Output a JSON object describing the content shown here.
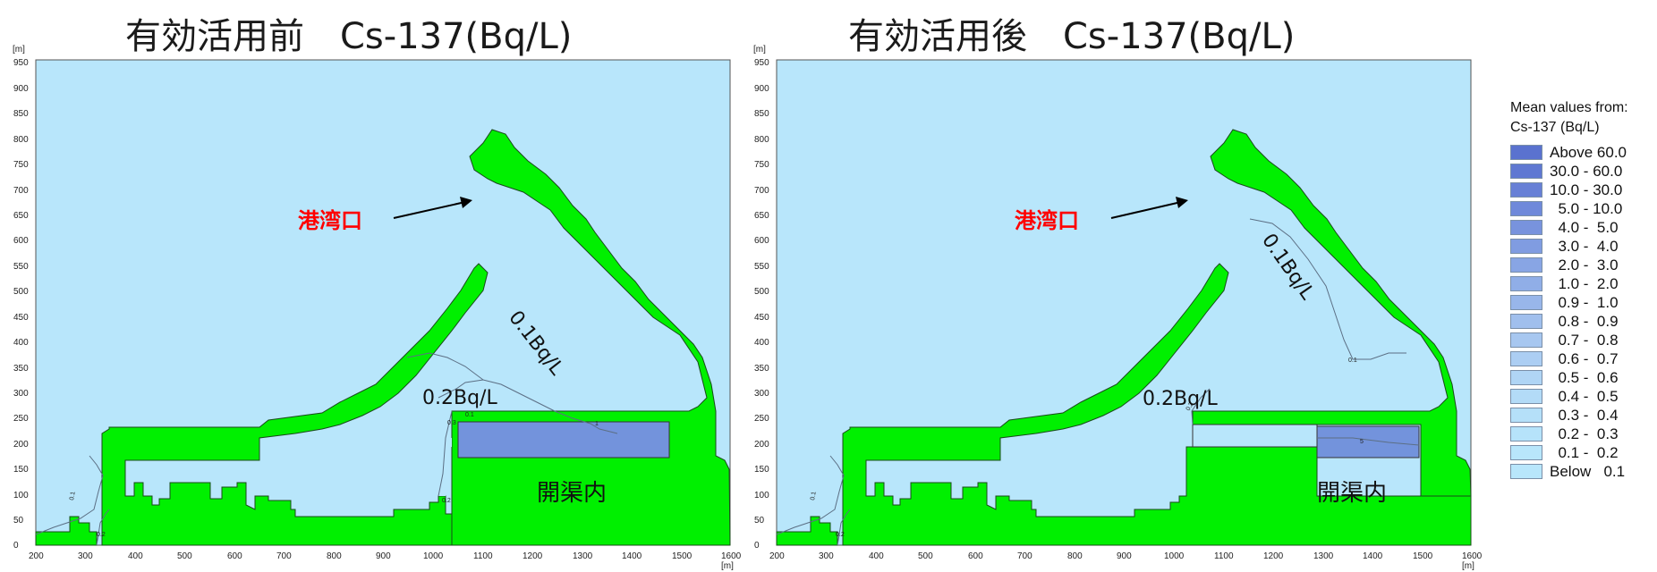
{
  "panels": [
    {
      "title": "有効活用前　Cs-137(Bq/L)",
      "port_label": "港湾口",
      "canal_label": "開渠内",
      "contour_a": "0.1Bq/L",
      "contour_b": "0.2Bq/L",
      "small_labels": [
        "0.1",
        "0.2",
        "0.3",
        "1",
        "0.1",
        "0.2"
      ]
    },
    {
      "title": "有効活用後　Cs-137(Bq/L)",
      "port_label": "港湾口",
      "canal_label": "開渠内",
      "contour_a": "0.1Bq/L",
      "contour_b": "0.2Bq/L",
      "small_labels": [
        "0.1",
        "0.2",
        "5",
        "0.1",
        "0.2"
      ]
    }
  ],
  "axes": {
    "unit": "[m]",
    "x_ticks": [
      "200",
      "300",
      "400",
      "500",
      "600",
      "700",
      "800",
      "900",
      "1000",
      "1100",
      "1200",
      "1300",
      "1400",
      "1500",
      "1600"
    ],
    "y_ticks": [
      "0",
      "50",
      "100",
      "150",
      "200",
      "250",
      "300",
      "350",
      "400",
      "450",
      "500",
      "550",
      "600",
      "650",
      "700",
      "750",
      "800",
      "850",
      "900",
      "950"
    ]
  },
  "legend": {
    "title_line1": "Mean values from:",
    "title_line2": "Cs-137 (Bq/L)",
    "items": [
      {
        "label": "Above 60.0",
        "color": "#5a72cf"
      },
      {
        "label": "30.0 - 60.0",
        "color": "#5f78d2"
      },
      {
        "label": "10.0 - 30.0",
        "color": "#6780d6"
      },
      {
        "label": "  5.0 - 10.0",
        "color": "#6f89da"
      },
      {
        "label": "  4.0 -  5.0",
        "color": "#7893dd"
      },
      {
        "label": "  3.0 -  4.0",
        "color": "#809ce1"
      },
      {
        "label": "  2.0 -  3.0",
        "color": "#88a5e4"
      },
      {
        "label": "  1.0 -  2.0",
        "color": "#90aee7"
      },
      {
        "label": "  0.9 -  1.0",
        "color": "#98b6ea"
      },
      {
        "label": "  0.8 -  0.9",
        "color": "#a0bfed"
      },
      {
        "label": "  0.7 -  0.8",
        "color": "#a7c7f0"
      },
      {
        "label": "  0.6 -  0.7",
        "color": "#accef3"
      },
      {
        "label": "  0.5 -  0.6",
        "color": "#b0d5f5"
      },
      {
        "label": "  0.4 -  0.5",
        "color": "#b3dbf7"
      },
      {
        "label": "  0.3 -  0.4",
        "color": "#b5e0f9"
      },
      {
        "label": "  0.2 -  0.3",
        "color": "#b6e3fa"
      },
      {
        "label": "  0.1 -  0.2",
        "color": "#b8e6fb"
      },
      {
        "label": "Below   0.1",
        "color": "#b8e6fb"
      }
    ]
  },
  "colors": {
    "water": "#b8e6fb",
    "land": "#00f000",
    "canal_high": "#7393dc",
    "port_label": "#ff0000"
  }
}
